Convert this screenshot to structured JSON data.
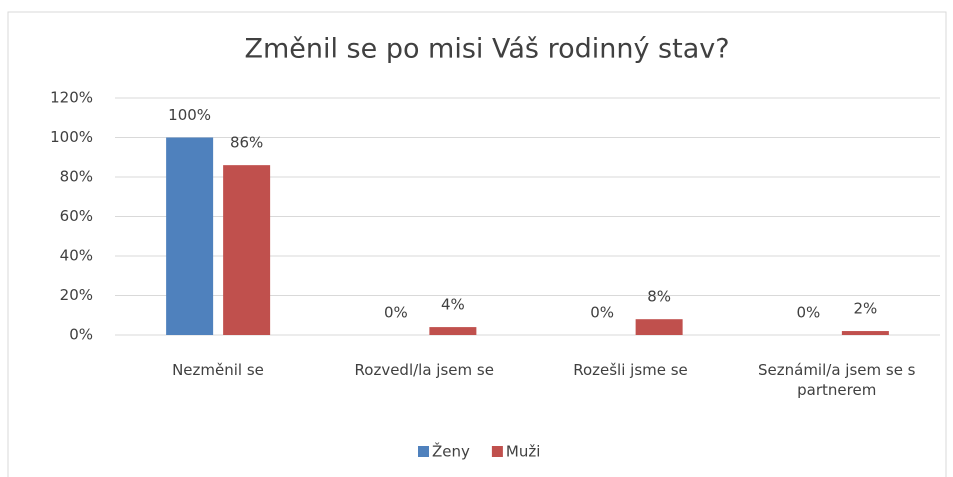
{
  "chart_data": {
    "type": "bar",
    "title": "Změnil se po misi Váš rodinný stav?",
    "categories": [
      "Nezměnil se",
      "Rozvedl/la jsem se",
      "Rozešli jsme se",
      "Seznámil/a jsem se s partnerem"
    ],
    "series": [
      {
        "name": "Ženy",
        "color": "#4f81bd",
        "values": [
          100,
          0,
          0,
          0
        ],
        "value_labels": [
          "100%",
          "0%",
          "0%",
          "0%"
        ]
      },
      {
        "name": "Muži",
        "color": "#c0504d",
        "values": [
          86,
          4,
          8,
          2
        ],
        "value_labels": [
          "86%",
          "4%",
          "8%",
          "2%"
        ]
      }
    ],
    "ylim": [
      0,
      120
    ],
    "yticks": [
      {
        "value": 0,
        "label": "0%"
      },
      {
        "value": 20,
        "label": "20%"
      },
      {
        "value": 40,
        "label": "40%"
      },
      {
        "value": 60,
        "label": "60%"
      },
      {
        "value": 80,
        "label": "80%"
      },
      {
        "value": 100,
        "label": "100%"
      },
      {
        "value": 120,
        "label": "120%"
      }
    ],
    "grid": true,
    "legend": "bottom"
  }
}
